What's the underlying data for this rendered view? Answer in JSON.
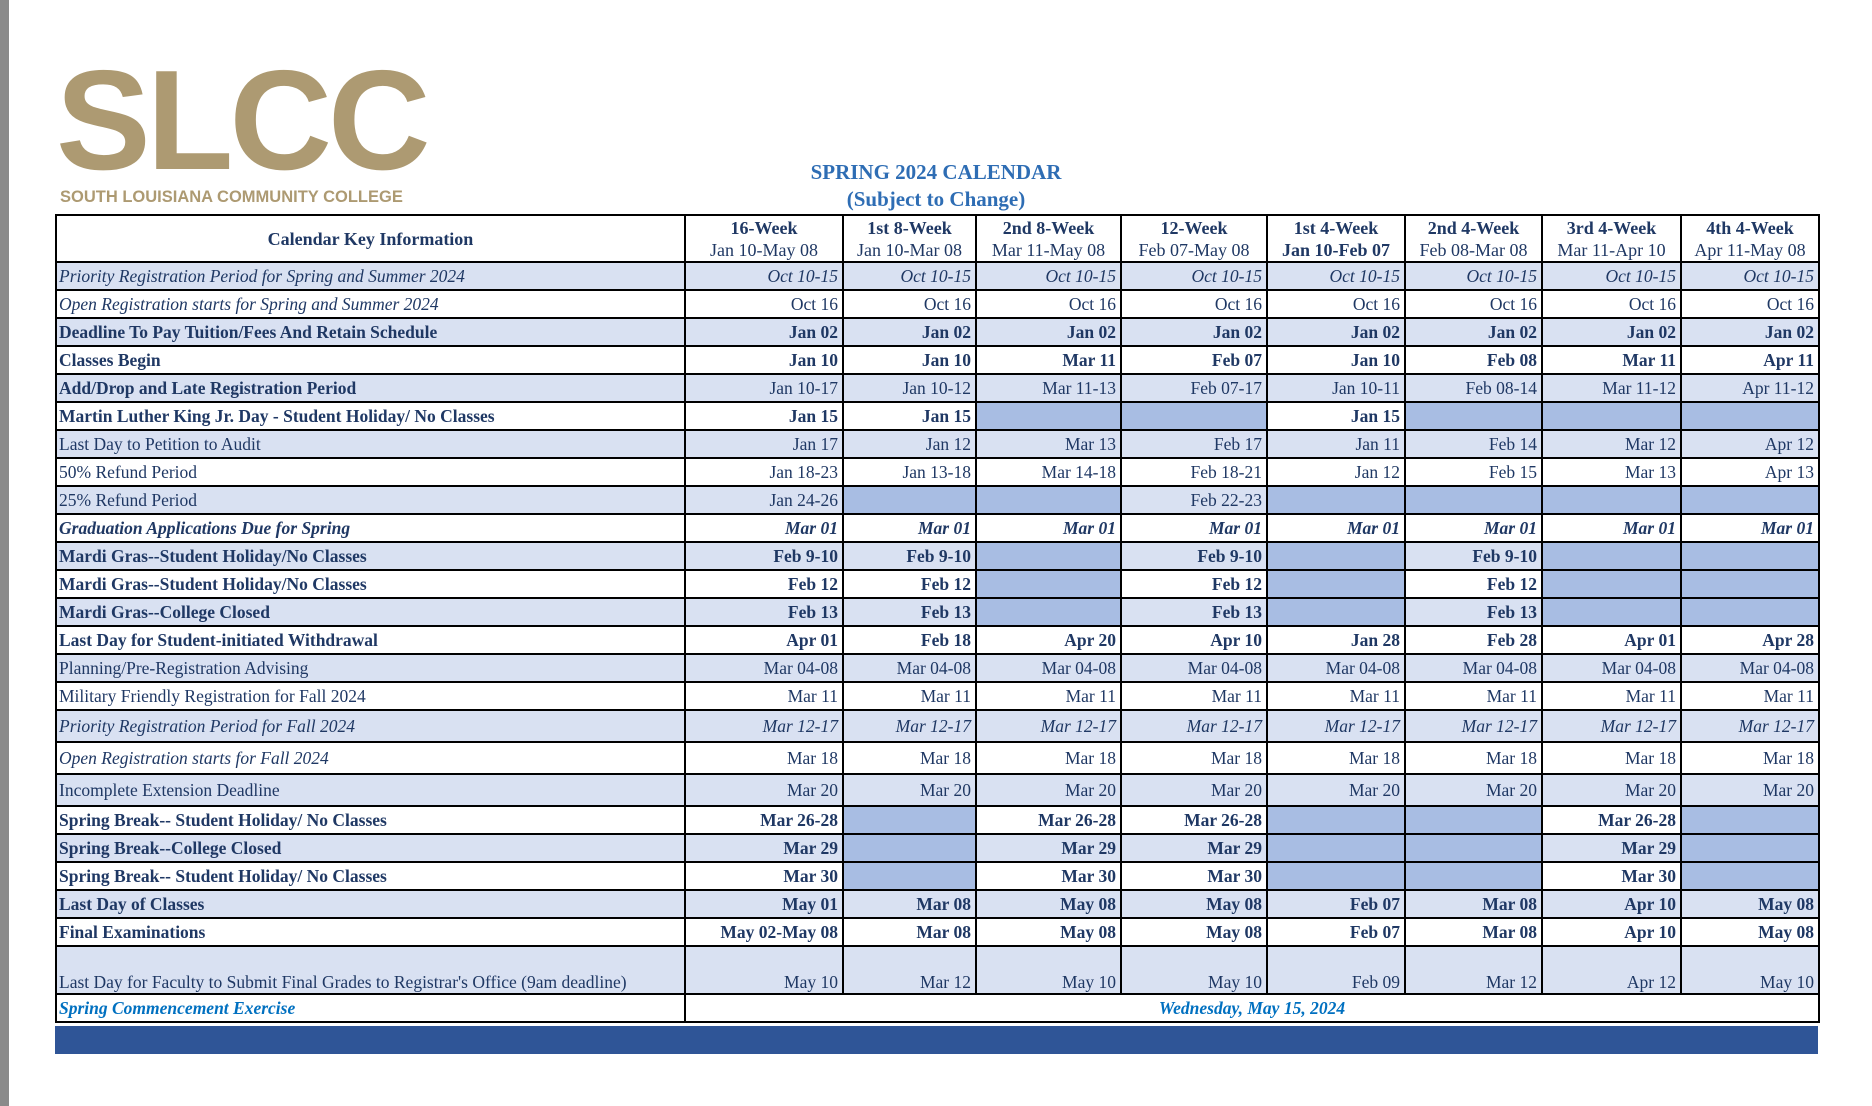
{
  "header": {
    "logo": "SLCC",
    "logo_subtitle": "SOUTH LOUISIANA COMMUNITY COLLEGE",
    "title": "SPRING 2024 CALENDAR",
    "subtitle": "(Subject to Change)"
  },
  "table": {
    "key_header": "Calendar Key Information",
    "columns": [
      {
        "name": "16-Week",
        "dates": "Jan 10-May 08"
      },
      {
        "name": "1st 8-Week",
        "dates": "Jan 10-Mar 08"
      },
      {
        "name": "2nd 8-Week",
        "dates": "Mar 11-May 08"
      },
      {
        "name": "12-Week",
        "dates": "Feb 07-May 08"
      },
      {
        "name": "1st 4-Week",
        "dates": "Jan 10-Feb 07"
      },
      {
        "name": "2nd 4-Week",
        "dates": "Feb 08-Mar 08"
      },
      {
        "name": "3rd 4-Week",
        "dates": "Mar 11-Apr 10"
      },
      {
        "name": "4th 4-Week",
        "dates": "Apr 11-May 08"
      }
    ],
    "rows": [
      {
        "label": "Priority Registration Period for Spring  and Summer 2024",
        "label_style": "italic",
        "cell_style": "italic",
        "cells": [
          "Oct 10-15",
          "Oct 10-15",
          "Oct 10-15",
          "Oct 10-15",
          "Oct 10-15",
          "Oct 10-15",
          "Oct 10-15",
          "Oct 10-15"
        ]
      },
      {
        "label": "Open Registration starts for Spring and Summer 2024",
        "label_style": "italic",
        "cell_style": "normal",
        "cells": [
          "Oct 16",
          "Oct 16",
          "Oct 16",
          "Oct 16",
          "Oct 16",
          "Oct 16",
          "Oct 16",
          "Oct 16"
        ]
      },
      {
        "label": "Deadline To Pay Tuition/Fees And Retain Schedule",
        "label_style": "bold",
        "cell_style": "bold",
        "cells": [
          "Jan 02",
          "Jan 02",
          "Jan 02",
          "Jan 02",
          "Jan 02",
          "Jan 02",
          "Jan 02",
          "Jan 02"
        ]
      },
      {
        "label": "Classes Begin",
        "label_style": "bold",
        "cell_style": "bold",
        "cells": [
          "Jan 10",
          "Jan 10",
          "Mar 11",
          "Feb 07",
          "Jan 10",
          "Feb 08",
          "Mar 11",
          "Apr 11"
        ]
      },
      {
        "label": "Add/Drop and Late Registration Period",
        "label_style": "bold",
        "cell_style": "normal",
        "cells": [
          "Jan 10-17",
          "Jan 10-12",
          "Mar 11-13",
          "Feb 07-17",
          "Jan 10-11",
          "Feb 08-14",
          "Mar 11-12",
          "Apr 11-12"
        ]
      },
      {
        "label": "Martin Luther King Jr. Day - Student Holiday/ No Classes",
        "label_style": "bold",
        "cell_style": "bold",
        "cells": [
          "Jan 15",
          "Jan 15",
          null,
          null,
          "Jan 15",
          null,
          null,
          null
        ]
      },
      {
        "label": "Last Day to Petition to Audit",
        "label_style": "normal",
        "cell_style": "normal",
        "cells": [
          "Jan 17",
          "Jan 12",
          "Mar 13",
          "Feb 17",
          "Jan 11",
          "Feb 14",
          "Mar 12",
          "Apr 12"
        ]
      },
      {
        "label": "50% Refund Period",
        "label_style": "normal",
        "cell_style": "normal",
        "cells": [
          "Jan 18-23",
          "Jan 13-18",
          "Mar 14-18",
          "Feb 18-21",
          "Jan 12",
          "Feb 15",
          "Mar 13",
          "Apr 13"
        ]
      },
      {
        "label": "25% Refund Period",
        "label_style": "normal",
        "cell_style": "normal",
        "cells": [
          "Jan 24-26",
          null,
          null,
          "Feb 22-23",
          null,
          null,
          null,
          null
        ]
      },
      {
        "label": "Graduation Applications Due for Spring",
        "label_style": "bold-italic",
        "cell_style": "bold-italic",
        "cells": [
          "Mar 01",
          "Mar 01",
          "Mar 01",
          "Mar 01",
          "Mar 01",
          "Mar 01",
          "Mar 01",
          "Mar 01"
        ]
      },
      {
        "label": "Mardi Gras--Student Holiday/No Classes",
        "label_style": "bold",
        "cell_style": "bold",
        "cells": [
          "Feb 9-10",
          "Feb 9-10",
          null,
          "Feb 9-10",
          null,
          "Feb 9-10",
          null,
          null
        ]
      },
      {
        "label": "Mardi Gras--Student Holiday/No Classes",
        "label_style": "bold",
        "cell_style": "bold",
        "cells": [
          "Feb 12",
          "Feb 12",
          null,
          "Feb 12",
          null,
          "Feb 12",
          null,
          null
        ]
      },
      {
        "label": "Mardi Gras--College Closed",
        "label_style": "bold",
        "cell_style": "bold",
        "cells": [
          "Feb 13",
          "Feb 13",
          null,
          "Feb 13",
          null,
          "Feb 13",
          null,
          null
        ]
      },
      {
        "label": "Last Day for Student-initiated Withdrawal",
        "label_style": "bold",
        "cell_style": "bold",
        "cells": [
          "Apr 01",
          "Feb 18",
          "Apr 20",
          "Apr 10",
          "Jan 28",
          "Feb 28",
          "Apr 01",
          "Apr 28"
        ]
      },
      {
        "label": "Planning/Pre-Registration Advising",
        "label_style": "normal",
        "cell_style": "normal",
        "cells": [
          "Mar 04-08",
          "Mar 04-08",
          "Mar 04-08",
          "Mar 04-08",
          "Mar 04-08",
          "Mar 04-08",
          "Mar 04-08",
          "Mar 04-08"
        ]
      },
      {
        "label": "Military Friendly Registration for Fall 2024",
        "label_style": "normal",
        "cell_style": "normal",
        "cells": [
          "Mar 11",
          "Mar 11",
          "Mar 11",
          "Mar 11",
          "Mar 11",
          "Mar 11",
          "Mar 11",
          "Mar 11"
        ]
      },
      {
        "label": "Priority Registration Period for  Fall 2024",
        "label_style": "italic",
        "cell_style": "italic",
        "cells": [
          "Mar 12-17",
          "Mar 12-17",
          "Mar 12-17",
          "Mar 12-17",
          "Mar 12-17",
          "Mar 12-17",
          "Mar 12-17",
          "Mar 12-17"
        ]
      },
      {
        "label": "Open Registration starts for Fall 2024",
        "label_style": "italic",
        "cell_style": "normal",
        "cells": [
          "Mar 18",
          "Mar 18",
          "Mar 18",
          "Mar 18",
          "Mar 18",
          "Mar 18",
          "Mar 18",
          "Mar 18"
        ]
      },
      {
        "label": "Incomplete Extension Deadline",
        "label_style": "normal",
        "cell_style": "normal",
        "cells": [
          "Mar 20",
          "Mar 20",
          "Mar 20",
          "Mar 20",
          "Mar 20",
          "Mar 20",
          "Mar 20",
          "Mar 20"
        ]
      },
      {
        "label": "Spring Break-- Student Holiday/ No Classes",
        "label_style": "bold",
        "cell_style": "bold",
        "cells": [
          "Mar 26-28",
          null,
          "Mar 26-28",
          "Mar 26-28",
          null,
          null,
          "Mar 26-28",
          null
        ]
      },
      {
        "label": "Spring Break--College Closed",
        "label_style": "bold",
        "cell_style": "bold",
        "cells": [
          "Mar 29",
          null,
          "Mar 29",
          "Mar 29",
          null,
          null,
          "Mar 29",
          null
        ]
      },
      {
        "label": "Spring Break-- Student Holiday/ No Classes",
        "label_style": "bold",
        "cell_style": "bold",
        "cells": [
          "Mar 30",
          null,
          "Mar 30",
          "Mar 30",
          null,
          null,
          "Mar 30",
          null
        ]
      },
      {
        "label": "Last Day of Classes",
        "label_style": "bold",
        "cell_style": "bold",
        "cells": [
          "May 01",
          "Mar 08",
          "May 08",
          "May 08",
          "Feb 07",
          "Mar 08",
          "Apr 10",
          "May 08"
        ]
      },
      {
        "label": "Final Examinations",
        "label_style": "bold",
        "cell_style": "bold",
        "cells": [
          "May 02-May 08",
          "Mar 08",
          "May 08",
          "May 08",
          "Feb 07",
          "Mar 08",
          "Apr 10",
          "May 08"
        ]
      },
      {
        "label": "Last Day for Faculty to Submit Final Grades to Registrar's Office (9am deadline)",
        "label_style": "normal",
        "cell_style": "normal",
        "cells": [
          "May 10",
          "Mar 12",
          "May 10",
          "May 10",
          "Feb 09",
          "Mar 12",
          "Apr 12",
          "May 10"
        ]
      }
    ],
    "footer": {
      "label": "Spring Commencement Exercise",
      "value": "Wednesday, May 15, 2024"
    }
  }
}
